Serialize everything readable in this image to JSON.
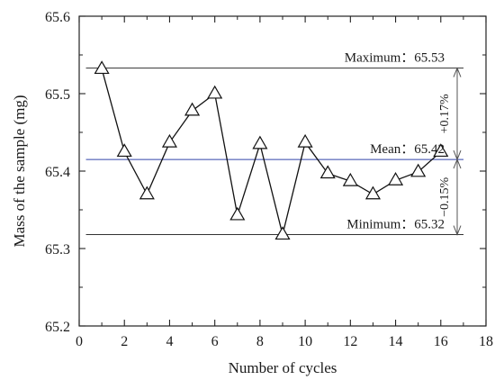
{
  "chart_data": {
    "type": "line",
    "title": "",
    "xlabel": "Number of cycles",
    "ylabel": "Mass of the sample (mg)",
    "xlim": [
      0,
      18
    ],
    "ylim": [
      65.2,
      65.6
    ],
    "x_ticks": [
      0,
      2,
      4,
      6,
      8,
      10,
      12,
      14,
      16,
      18
    ],
    "y_ticks": [
      "65.2",
      "65.3",
      "65.4",
      "65.5",
      "65.6"
    ],
    "grid": false,
    "marker": "open-triangle",
    "series": [
      {
        "x": [
          1,
          2,
          3,
          4,
          5,
          6,
          7,
          8,
          9,
          10,
          11,
          12,
          13,
          14,
          15,
          16
        ],
        "values": [
          65.532,
          65.425,
          65.37,
          65.437,
          65.478,
          65.5,
          65.343,
          65.435,
          65.318,
          65.437,
          65.397,
          65.387,
          65.37,
          65.388,
          65.399,
          65.425
        ]
      }
    ],
    "reference_lines": [
      {
        "y": 65.533,
        "label": "Maximum：65.53",
        "color": "#333333"
      },
      {
        "y": 65.415,
        "label": "Mean：65.42",
        "color": "#3344aa"
      },
      {
        "y": 65.318,
        "label": "Minimum：65.32",
        "color": "#333333"
      }
    ],
    "annotations": {
      "upper_deviation": "+0.17%",
      "lower_deviation": "−0.15%"
    }
  }
}
